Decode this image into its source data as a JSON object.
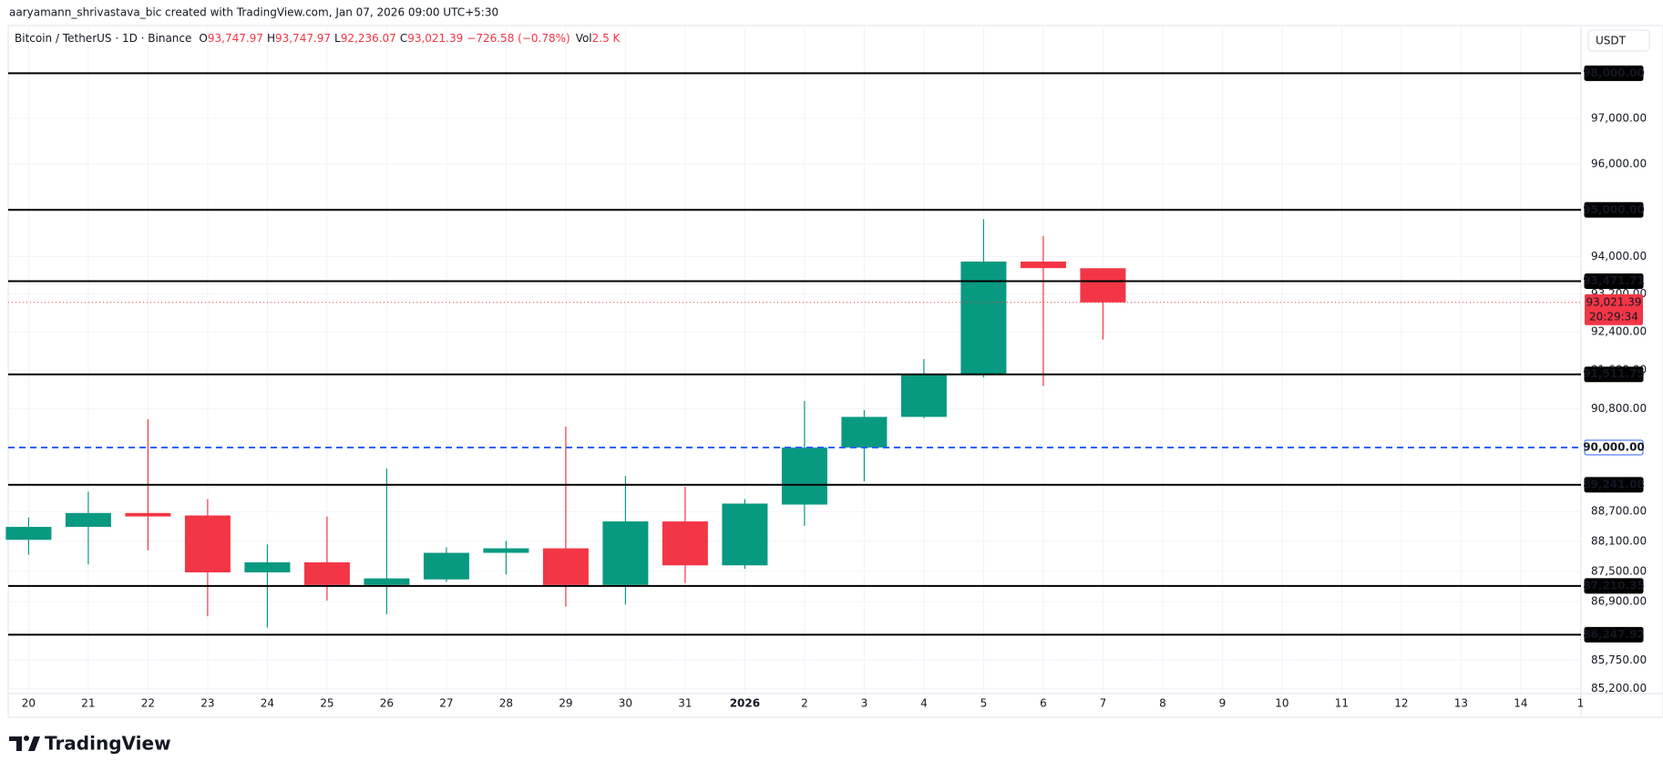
{
  "header": {
    "credit": "aaryamann_shrivastava_bic created with TradingView.com, Jan 07, 2026 09:00 UTC+5:30",
    "symbol": "Bitcoin / TetherUS · 1D · Binance",
    "o_label": "O",
    "o": "93,747.97",
    "h_label": "H",
    "h": "93,747.97",
    "l_label": "L",
    "l": "92,236.07",
    "c_label": "C",
    "c": "93,021.39",
    "change": "−726.58 (−0.78%)",
    "vol_label": "Vol",
    "vol": "2.5 K",
    "currency": "USDT",
    "brand": "TradingView"
  },
  "chart_data": {
    "type": "candlestick",
    "categories": [
      "20",
      "21",
      "22",
      "23",
      "24",
      "25",
      "26",
      "27",
      "28",
      "29",
      "30",
      "31",
      "2026",
      "2",
      "3",
      "4",
      "5",
      "6",
      "7",
      "8",
      "9",
      "10",
      "11",
      "12",
      "13",
      "14",
      "1"
    ],
    "bold_category_index": 12,
    "open": [
      88130,
      88390,
      88670,
      88620,
      87480,
      87680,
      87230,
      87340,
      87870,
      87960,
      87230,
      88500,
      87620,
      88840,
      90000,
      90630,
      91510,
      93890,
      93747.97,
      null,
      null,
      null,
      null,
      null,
      null,
      null,
      null
    ],
    "high": [
      88580,
      89100,
      90580,
      88950,
      88040,
      88600,
      89570,
      87980,
      88110,
      90430,
      89420,
      89200,
      88950,
      90960,
      90770,
      91830,
      94800,
      94440,
      93747.97,
      null,
      null,
      null,
      null,
      null,
      null,
      null,
      null
    ],
    "low": [
      87830,
      87640,
      87920,
      86610,
      86390,
      86920,
      86650,
      87290,
      87440,
      86800,
      86840,
      87270,
      87550,
      88410,
      89310,
      90600,
      91450,
      91270,
      92236.07,
      null,
      null,
      null,
      null,
      null,
      null,
      null,
      null
    ],
    "close": [
      88390,
      88670,
      88600,
      87480,
      87680,
      87230,
      87360,
      87870,
      87960,
      87230,
      88500,
      87620,
      88860,
      90000,
      90630,
      91510,
      93890,
      93750,
      93021.39,
      null,
      null,
      null,
      null,
      null,
      null,
      null,
      null
    ],
    "up_color": "#089981",
    "down_color": "#f23645",
    "log_scale": true,
    "grid": true,
    "ylim": [
      85100,
      99070
    ],
    "yticks": [
      {
        "value": 97000,
        "label": "97,000.00"
      },
      {
        "value": 96000,
        "label": "96,000.00"
      },
      {
        "value": 94000,
        "label": "94,000.00"
      },
      {
        "value": 93200,
        "label": "93,200.00"
      },
      {
        "value": 92400,
        "label": "92,400.00"
      },
      {
        "value": 91600,
        "label": "91,600.00"
      },
      {
        "value": 90800,
        "label": "90,800.00"
      },
      {
        "value": 88700,
        "label": "88,700.00"
      },
      {
        "value": 88100,
        "label": "88,100.00"
      },
      {
        "value": 87500,
        "label": "87,500.00"
      },
      {
        "value": 86900,
        "label": "86,900.00"
      },
      {
        "value": 85750,
        "label": "85,750.00"
      },
      {
        "value": 85200,
        "label": "85,200.00"
      }
    ],
    "levels": [
      {
        "value": 98000,
        "label": "98,000.00",
        "color": "#000000",
        "style": "solid"
      },
      {
        "value": 95000,
        "label": "95,000.00",
        "color": "#000000",
        "style": "solid"
      },
      {
        "value": 93471.71,
        "label": "93,471.71",
        "color": "#000000",
        "style": "solid"
      },
      {
        "value": 91511.75,
        "label": "91,511.75",
        "color": "#000000",
        "style": "solid"
      },
      {
        "value": 90000,
        "label": "90,000.00",
        "color": "#2962ff",
        "style": "dashed"
      },
      {
        "value": 89241.08,
        "label": "89,241.08",
        "color": "#000000",
        "style": "solid"
      },
      {
        "value": 87210.35,
        "label": "87,210.35",
        "color": "#000000",
        "style": "solid"
      },
      {
        "value": 86247.92,
        "label": "86,247.92",
        "color": "#000000",
        "style": "solid"
      }
    ],
    "last_price": {
      "value": 93021.39,
      "label": "93,021.39",
      "countdown": "20:29:34",
      "color": "#f23645"
    }
  }
}
